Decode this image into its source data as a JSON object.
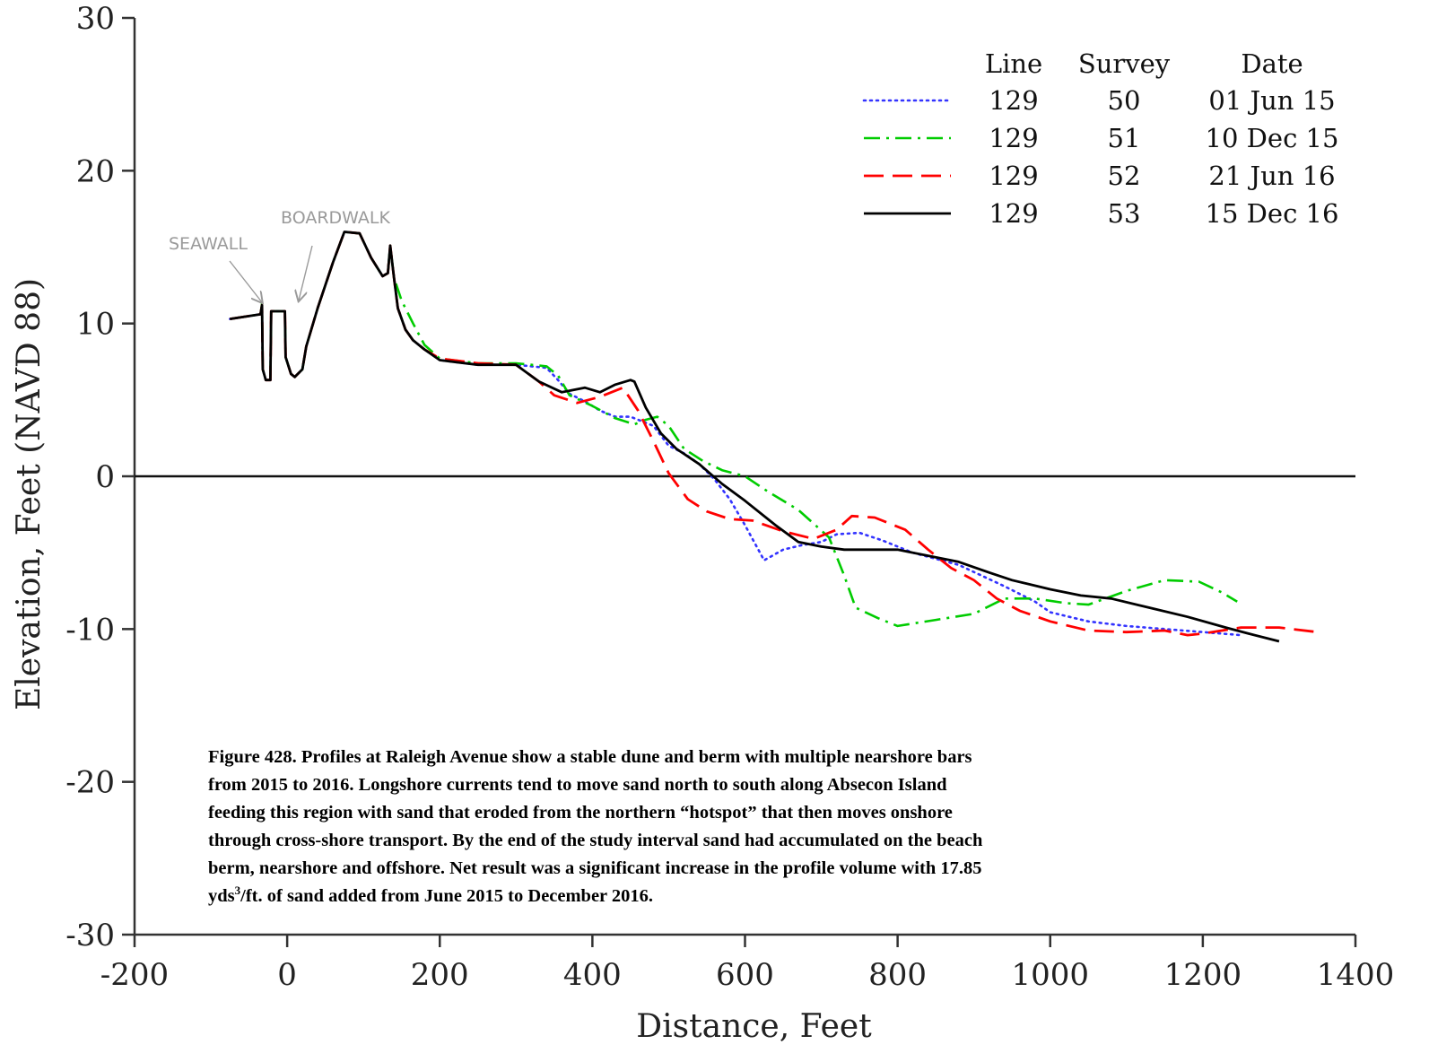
{
  "chart_data": {
    "type": "line",
    "xlabel": "Distance, Feet",
    "ylabel": "Elevation, Feet (NAVD 88)",
    "xlim": [
      -200,
      1400
    ],
    "ylim": [
      -30,
      30
    ],
    "x_ticks": [
      -200,
      0,
      200,
      400,
      600,
      800,
      1000,
      1200,
      1400
    ],
    "y_ticks": [
      -30,
      -20,
      -10,
      0,
      10,
      20,
      30
    ],
    "zero_line": true,
    "grid": false,
    "legend_position": "top-right",
    "legend_headers": {
      "line": "Line",
      "survey": "Survey",
      "date": "Date"
    },
    "annotations": [
      {
        "text": "SEAWALL",
        "x": -28,
        "y": 11.5
      },
      {
        "text": "BOARDWALK",
        "x": 15,
        "y": 11
      }
    ],
    "caption": {
      "lines": [
        "Figure 428.  Profiles at Raleigh Avenue show a stable dune and berm with multiple nearshore bars",
        "from 2015 to 2016.  Longshore currents tend to move sand north to south along Absecon Island",
        "feeding this region with sand that eroded from the northern “hotspot” that then moves onshore",
        "through cross-shore transport.  By the end of the study interval sand had accumulated on the beach",
        "berm, nearshore and offshore.  Net result was a significant increase in the profile volume with 17.85"
      ],
      "last_pre": "yds",
      "last_sup": "3",
      "last_post": "/ft. of sand added from June 2015 to December 2016."
    },
    "series": [
      {
        "line": "129",
        "survey": "50",
        "date": "01 Jun 15",
        "color": "#3333ff",
        "style": "dotted",
        "points": [
          [
            -75,
            10.3
          ],
          [
            -35,
            10.6
          ],
          [
            -33,
            11.2
          ],
          [
            -32,
            7
          ],
          [
            -28,
            6.3
          ],
          [
            -22,
            6.3
          ],
          [
            -21,
            10.8
          ],
          [
            -3,
            10.8
          ],
          [
            -2,
            7.8
          ],
          [
            5,
            6.7
          ],
          [
            10,
            6.5
          ],
          [
            20,
            7
          ],
          [
            25,
            8.5
          ],
          [
            40,
            11
          ],
          [
            60,
            14
          ],
          [
            75,
            16
          ],
          [
            95,
            15.9
          ],
          [
            110,
            14.3
          ],
          [
            125,
            13.1
          ],
          [
            132,
            13.3
          ],
          [
            135,
            15.1
          ],
          [
            140,
            13
          ],
          [
            145,
            11
          ],
          [
            155,
            9.6
          ],
          [
            165,
            8.9
          ],
          [
            180,
            8.3
          ],
          [
            200,
            7.6
          ],
          [
            250,
            7.3
          ],
          [
            300,
            7.3
          ],
          [
            340,
            7.1
          ],
          [
            355,
            6.3
          ],
          [
            370,
            5.4
          ],
          [
            390,
            4.9
          ],
          [
            410,
            4.3
          ],
          [
            430,
            3.9
          ],
          [
            450,
            3.9
          ],
          [
            480,
            3.3
          ],
          [
            500,
            2
          ],
          [
            520,
            1.5
          ],
          [
            540,
            0.8
          ],
          [
            560,
            -0.2
          ],
          [
            580,
            -1.5
          ],
          [
            600,
            -3.2
          ],
          [
            625,
            -5.5
          ],
          [
            650,
            -4.8
          ],
          [
            675,
            -4.5
          ],
          [
            700,
            -4.3
          ],
          [
            720,
            -3.8
          ],
          [
            750,
            -3.7
          ],
          [
            780,
            -4.2
          ],
          [
            820,
            -5
          ],
          [
            880,
            -5.8
          ],
          [
            940,
            -7.2
          ],
          [
            980,
            -8.2
          ],
          [
            1000,
            -8.9
          ],
          [
            1050,
            -9.5
          ],
          [
            1100,
            -9.8
          ],
          [
            1150,
            -10
          ],
          [
            1200,
            -10.2
          ],
          [
            1250,
            -10.4
          ]
        ]
      },
      {
        "line": "129",
        "survey": "51",
        "date": "10 Dec 15",
        "color": "#00cc00",
        "style": "dashdot",
        "points": [
          [
            -75,
            10.3
          ],
          [
            -35,
            10.6
          ],
          [
            -33,
            11.3
          ],
          [
            -32,
            7
          ],
          [
            -28,
            6.3
          ],
          [
            -22,
            6.3
          ],
          [
            -21,
            10.8
          ],
          [
            -3,
            10.8
          ],
          [
            -2,
            7.8
          ],
          [
            5,
            6.7
          ],
          [
            10,
            6.5
          ],
          [
            20,
            7
          ],
          [
            25,
            8.5
          ],
          [
            40,
            11
          ],
          [
            60,
            14
          ],
          [
            75,
            16
          ],
          [
            95,
            15.9
          ],
          [
            110,
            14.3
          ],
          [
            125,
            13.1
          ],
          [
            132,
            13.3
          ],
          [
            135,
            15.1
          ],
          [
            140,
            13
          ],
          [
            150,
            11.5
          ],
          [
            165,
            10
          ],
          [
            180,
            8.6
          ],
          [
            200,
            7.7
          ],
          [
            250,
            7.4
          ],
          [
            300,
            7.4
          ],
          [
            340,
            7.2
          ],
          [
            355,
            6.6
          ],
          [
            370,
            5.3
          ],
          [
            400,
            4.6
          ],
          [
            430,
            3.8
          ],
          [
            455,
            3.4
          ],
          [
            470,
            3.7
          ],
          [
            485,
            3.9
          ],
          [
            500,
            3.3
          ],
          [
            520,
            1.8
          ],
          [
            545,
            1
          ],
          [
            570,
            0.4
          ],
          [
            600,
            0
          ],
          [
            630,
            -1
          ],
          [
            670,
            -2.2
          ],
          [
            710,
            -4
          ],
          [
            730,
            -6.5
          ],
          [
            745,
            -8.6
          ],
          [
            775,
            -9.3
          ],
          [
            800,
            -9.8
          ],
          [
            850,
            -9.4
          ],
          [
            900,
            -9
          ],
          [
            940,
            -8
          ],
          [
            980,
            -8
          ],
          [
            1020,
            -8.3
          ],
          [
            1050,
            -8.4
          ],
          [
            1100,
            -7.5
          ],
          [
            1150,
            -6.8
          ],
          [
            1195,
            -6.9
          ],
          [
            1225,
            -7.6
          ],
          [
            1245,
            -8.2
          ]
        ]
      },
      {
        "line": "129",
        "survey": "52",
        "date": "21 Jun 16",
        "color": "#ff0000",
        "style": "dashed",
        "points": [
          [
            -75,
            10.3
          ],
          [
            -35,
            10.6
          ],
          [
            -33,
            11.2
          ],
          [
            -32,
            7
          ],
          [
            -28,
            6.3
          ],
          [
            -22,
            6.3
          ],
          [
            -21,
            10.8
          ],
          [
            -3,
            10.8
          ],
          [
            -2,
            7.8
          ],
          [
            5,
            6.7
          ],
          [
            10,
            6.5
          ],
          [
            20,
            7
          ],
          [
            25,
            8.5
          ],
          [
            40,
            11
          ],
          [
            60,
            14
          ],
          [
            75,
            16
          ],
          [
            95,
            15.9
          ],
          [
            110,
            14.3
          ],
          [
            125,
            13.1
          ],
          [
            132,
            13.3
          ],
          [
            135,
            15.1
          ],
          [
            140,
            13
          ],
          [
            145,
            11
          ],
          [
            155,
            9.6
          ],
          [
            165,
            8.9
          ],
          [
            180,
            8.3
          ],
          [
            200,
            7.7
          ],
          [
            250,
            7.4
          ],
          [
            300,
            7.3
          ],
          [
            330,
            6.2
          ],
          [
            350,
            5.3
          ],
          [
            380,
            4.8
          ],
          [
            410,
            5.2
          ],
          [
            440,
            5.8
          ],
          [
            460,
            4.3
          ],
          [
            480,
            2.3
          ],
          [
            500,
            0.2
          ],
          [
            525,
            -1.5
          ],
          [
            550,
            -2.3
          ],
          [
            580,
            -2.8
          ],
          [
            610,
            -2.9
          ],
          [
            650,
            -3.6
          ],
          [
            690,
            -4.1
          ],
          [
            720,
            -3.5
          ],
          [
            740,
            -2.6
          ],
          [
            770,
            -2.7
          ],
          [
            810,
            -3.5
          ],
          [
            840,
            -4.8
          ],
          [
            870,
            -6
          ],
          [
            900,
            -6.8
          ],
          [
            930,
            -8
          ],
          [
            960,
            -8.8
          ],
          [
            1000,
            -9.5
          ],
          [
            1050,
            -10.1
          ],
          [
            1100,
            -10.2
          ],
          [
            1150,
            -10.1
          ],
          [
            1180,
            -10.4
          ],
          [
            1200,
            -10.3
          ],
          [
            1250,
            -9.9
          ],
          [
            1300,
            -9.9
          ],
          [
            1350,
            -10.2
          ]
        ]
      },
      {
        "line": "129",
        "survey": "53",
        "date": "15 Dec 16",
        "color": "#000000",
        "style": "solid",
        "points": [
          [
            -75,
            10.3
          ],
          [
            -35,
            10.6
          ],
          [
            -33,
            11.2
          ],
          [
            -32,
            7
          ],
          [
            -28,
            6.3
          ],
          [
            -22,
            6.3
          ],
          [
            -21,
            10.8
          ],
          [
            -3,
            10.8
          ],
          [
            -2,
            7.8
          ],
          [
            5,
            6.7
          ],
          [
            10,
            6.5
          ],
          [
            20,
            7
          ],
          [
            25,
            8.5
          ],
          [
            40,
            11
          ],
          [
            60,
            14
          ],
          [
            75,
            16
          ],
          [
            95,
            15.9
          ],
          [
            110,
            14.3
          ],
          [
            125,
            13.1
          ],
          [
            132,
            13.3
          ],
          [
            135,
            15.1
          ],
          [
            140,
            13
          ],
          [
            145,
            11
          ],
          [
            155,
            9.6
          ],
          [
            165,
            8.9
          ],
          [
            180,
            8.3
          ],
          [
            200,
            7.6
          ],
          [
            250,
            7.3
          ],
          [
            300,
            7.3
          ],
          [
            330,
            6.2
          ],
          [
            360,
            5.5
          ],
          [
            390,
            5.8
          ],
          [
            410,
            5.5
          ],
          [
            430,
            6
          ],
          [
            450,
            6.3
          ],
          [
            455,
            6.2
          ],
          [
            470,
            4.5
          ],
          [
            490,
            2.8
          ],
          [
            510,
            1.8
          ],
          [
            540,
            0.8
          ],
          [
            570,
            -0.5
          ],
          [
            600,
            -1.6
          ],
          [
            640,
            -3.2
          ],
          [
            670,
            -4.3
          ],
          [
            700,
            -4.6
          ],
          [
            730,
            -4.8
          ],
          [
            760,
            -4.8
          ],
          [
            800,
            -4.8
          ],
          [
            840,
            -5.2
          ],
          [
            880,
            -5.6
          ],
          [
            920,
            -6.3
          ],
          [
            950,
            -6.8
          ],
          [
            1000,
            -7.4
          ],
          [
            1040,
            -7.8
          ],
          [
            1080,
            -8
          ],
          [
            1130,
            -8.6
          ],
          [
            1180,
            -9.2
          ],
          [
            1230,
            -9.9
          ],
          [
            1260,
            -10.3
          ],
          [
            1300,
            -10.8
          ]
        ]
      }
    ]
  }
}
